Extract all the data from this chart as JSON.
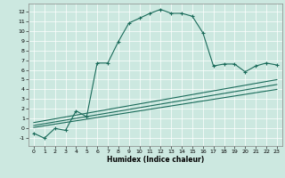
{
  "xlabel": "Humidex (Indice chaleur)",
  "bg_color": "#cce8e0",
  "grid_color": "#ffffff",
  "line_color": "#1a6b5a",
  "xlim": [
    -0.5,
    23.5
  ],
  "ylim": [
    -1.8,
    12.8
  ],
  "xticks": [
    0,
    1,
    2,
    3,
    4,
    5,
    6,
    7,
    8,
    9,
    10,
    11,
    12,
    13,
    14,
    15,
    16,
    17,
    18,
    19,
    20,
    21,
    22,
    23
  ],
  "yticks": [
    -1,
    0,
    1,
    2,
    3,
    4,
    5,
    6,
    7,
    8,
    9,
    10,
    11,
    12
  ],
  "curve1_x": [
    0,
    1,
    2,
    3,
    4,
    5,
    6,
    7,
    8,
    9,
    10,
    11,
    12,
    13,
    14,
    15,
    16,
    17,
    18,
    19,
    20,
    21,
    22,
    23
  ],
  "curve1_y": [
    -0.5,
    -1.0,
    0.0,
    -0.2,
    1.8,
    1.2,
    6.7,
    6.7,
    8.9,
    10.8,
    11.3,
    11.8,
    12.2,
    11.8,
    11.8,
    11.5,
    9.8,
    6.4,
    6.6,
    6.6,
    5.8,
    6.4,
    6.7,
    6.5
  ],
  "line1_x": [
    0,
    23
  ],
  "line1_y": [
    0.6,
    5.0
  ],
  "line2_x": [
    0,
    23
  ],
  "line2_y": [
    0.3,
    4.5
  ],
  "line3_x": [
    0,
    23
  ],
  "line3_y": [
    0.1,
    4.0
  ],
  "xlabel_fontsize": 5.5,
  "tick_fontsize": 4.5,
  "linewidth": 0.8,
  "marker_size": 3
}
